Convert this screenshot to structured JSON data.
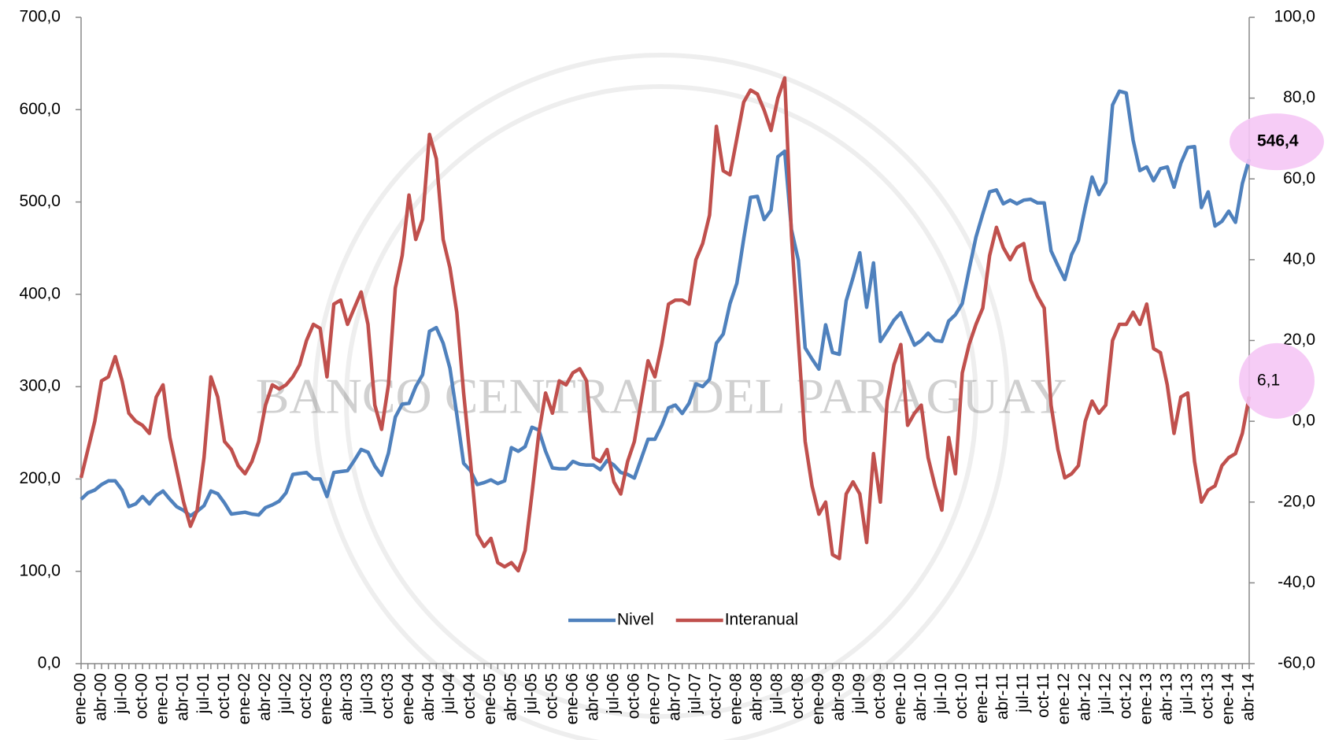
{
  "chart_data": {
    "type": "line",
    "watermark": "BANCO CENTRAL DEL PARAGUAY",
    "categories": [
      "ene-00",
      null,
      null,
      "abr-00",
      null,
      null,
      "jul-00",
      null,
      null,
      "oct-00",
      null,
      null,
      "ene-01",
      null,
      null,
      "abr-01",
      null,
      null,
      "jul-01",
      null,
      null,
      "oct-01",
      null,
      null,
      "ene-02",
      null,
      null,
      "abr-02",
      null,
      null,
      "jul-02",
      null,
      null,
      "oct-02",
      null,
      null,
      "ene-03",
      null,
      null,
      "abr-03",
      null,
      null,
      "jul-03",
      null,
      null,
      "oct-03",
      null,
      null,
      "ene-04",
      null,
      null,
      "abr-04",
      null,
      null,
      "jul-04",
      null,
      null,
      "oct-04",
      null,
      null,
      "ene-05",
      null,
      null,
      "abr-05",
      null,
      null,
      "jul-05",
      null,
      null,
      "oct-05",
      null,
      null,
      "ene-06",
      null,
      null,
      "abr-06",
      null,
      null,
      "jul-06",
      null,
      null,
      "oct-06",
      null,
      null,
      "ene-07",
      null,
      null,
      "abr-07",
      null,
      null,
      "jul-07",
      null,
      null,
      "oct-07",
      null,
      null,
      "ene-08",
      null,
      null,
      "abr-08",
      null,
      null,
      "jul-08",
      null,
      null,
      "oct-08",
      null,
      null,
      "ene-09",
      null,
      null,
      "abr-09",
      null,
      null,
      "jul-09",
      null,
      null,
      "oct-09",
      null,
      null,
      "ene-10",
      null,
      null,
      "abr-10",
      null,
      null,
      "jul-10",
      null,
      null,
      "oct-10",
      null,
      null,
      "ene-11",
      null,
      null,
      "abr-11",
      null,
      null,
      "jul-11",
      null,
      null,
      "oct-11",
      null,
      null,
      "ene-12",
      null,
      null,
      "abr-12",
      null,
      null,
      "jul-12",
      null,
      null,
      "oct-12",
      null,
      null,
      "ene-13",
      null,
      null,
      "abr-13",
      null,
      null,
      "jul-13",
      null,
      null,
      "oct-13",
      null,
      null,
      "ene-14",
      null,
      null,
      "abr-14"
    ],
    "series": [
      {
        "name": "Nivel",
        "color": "#4f81bd",
        "axis": "y",
        "values": [
          178,
          185,
          188,
          194,
          198,
          198,
          188,
          170,
          173,
          181,
          173,
          182,
          187,
          178,
          170,
          166,
          160,
          165,
          171,
          187,
          184,
          174,
          162,
          163,
          164,
          162,
          161,
          169,
          172,
          176,
          185,
          205,
          206,
          207,
          200,
          200,
          181,
          207,
          208,
          209,
          220,
          232,
          229,
          214,
          204,
          228,
          267,
          281,
          282,
          300,
          313,
          360,
          364,
          347,
          320,
          270,
          217,
          209,
          194,
          196,
          199,
          195,
          198,
          234,
          230,
          235,
          256,
          253,
          230,
          212,
          211,
          211,
          219,
          216,
          215,
          215,
          210,
          220,
          215,
          207,
          205,
          201,
          222,
          243,
          243,
          258,
          277,
          280,
          271,
          282,
          303,
          300,
          308,
          347,
          357,
          390,
          412,
          460,
          505,
          506,
          481,
          491,
          549,
          555,
          470,
          437,
          342,
          330,
          319,
          367,
          337,
          335,
          393,
          418,
          445,
          386,
          434,
          349,
          360,
          372,
          380,
          362,
          345,
          350,
          358,
          350,
          349,
          371,
          378,
          390,
          427,
          462,
          487,
          511,
          513,
          498,
          502,
          498,
          502,
          503,
          499,
          499,
          447,
          431,
          416,
          443,
          458,
          494,
          527,
          508,
          521,
          605,
          620,
          618,
          567,
          534,
          538,
          523,
          536,
          538,
          516,
          542,
          559,
          560,
          494,
          511,
          474,
          479,
          490,
          478,
          520,
          546.4
        ],
        "value_labels": [
          null,
          null,
          null,
          null,
          null,
          null,
          null,
          null,
          null,
          null,
          null,
          null,
          null,
          null,
          null,
          null,
          null,
          null,
          null,
          null,
          null,
          null,
          null,
          null,
          null,
          null,
          null,
          null,
          null,
          null,
          null,
          null,
          null,
          null,
          null,
          null,
          null,
          null,
          null,
          null,
          null,
          null,
          null,
          null,
          null,
          null,
          null,
          null,
          null,
          null,
          null,
          null,
          null,
          null,
          null,
          null,
          null,
          null,
          null,
          null,
          null,
          null,
          null,
          null,
          null,
          null,
          null,
          null,
          null,
          null,
          null,
          null,
          null,
          null,
          null,
          null,
          null,
          null,
          null,
          null,
          null,
          null,
          null,
          null,
          null,
          null,
          null,
          null,
          null,
          null,
          null,
          null,
          null,
          null,
          null,
          null,
          null,
          null,
          null,
          null,
          null,
          null,
          null,
          null,
          null,
          null,
          null,
          null,
          null,
          null,
          null,
          null,
          null,
          null,
          null,
          null,
          null,
          null,
          null,
          null,
          null,
          null,
          null,
          null,
          null,
          null,
          null,
          null,
          null,
          null,
          null,
          null,
          null,
          null,
          null,
          null,
          null,
          null,
          null,
          null,
          null,
          null,
          null,
          null,
          null,
          null,
          null,
          null,
          null,
          null,
          null,
          null,
          null,
          null,
          null,
          null,
          null,
          null,
          null,
          null,
          null,
          null,
          null,
          null,
          null,
          null,
          null,
          null,
          null,
          null,
          null,
          "546,4"
        ]
      },
      {
        "name": "Interanual",
        "color": "#c0504d",
        "axis": "y2",
        "values": [
          -14,
          -7,
          0,
          10,
          11,
          16,
          10,
          2,
          0,
          -1,
          -3,
          6,
          9,
          -4,
          -12,
          -20,
          -26,
          -22,
          -9,
          11,
          6,
          -5,
          -7,
          -11,
          -13,
          -10,
          -5,
          4,
          9,
          8,
          9,
          11,
          14,
          20,
          24,
          23,
          11,
          29,
          30,
          24,
          28,
          32,
          24,
          4,
          -2,
          9,
          33,
          41,
          56,
          45,
          50,
          71,
          65,
          45,
          38,
          27,
          7,
          -10,
          -28,
          -31,
          -29,
          -35,
          -36,
          -35,
          -37,
          -32,
          -18,
          -3,
          7,
          2,
          10,
          9,
          12,
          13,
          10,
          -9,
          -10,
          -7,
          -15,
          -18,
          -10,
          -5,
          5,
          15,
          11,
          19,
          29,
          30,
          30,
          29,
          40,
          44,
          51,
          73,
          62,
          61,
          70,
          79,
          82,
          81,
          77,
          72,
          80,
          85,
          46,
          20,
          -5,
          -16,
          -23,
          -20,
          -33,
          -34,
          -18,
          -15,
          -18,
          -30,
          -8,
          -20,
          5,
          14,
          19,
          -1,
          2,
          4,
          -9,
          -16,
          -22,
          -4,
          -13,
          12,
          19,
          24,
          28,
          41,
          48,
          43,
          40,
          43,
          44,
          35,
          31,
          28,
          4,
          -7,
          -14,
          -13,
          -11,
          0,
          5,
          2,
          4,
          20,
          24,
          24,
          27,
          24,
          29,
          18,
          17,
          9,
          -3,
          6,
          7,
          -10,
          -20,
          -17,
          -16,
          -11,
          -9,
          -8,
          -3,
          6.1
        ],
        "value_labels": [
          null,
          null,
          null,
          null,
          null,
          null,
          null,
          null,
          null,
          null,
          null,
          null,
          null,
          null,
          null,
          null,
          null,
          null,
          null,
          null,
          null,
          null,
          null,
          null,
          null,
          null,
          null,
          null,
          null,
          null,
          null,
          null,
          null,
          null,
          null,
          null,
          null,
          null,
          null,
          null,
          null,
          null,
          null,
          null,
          null,
          null,
          null,
          null,
          null,
          null,
          null,
          null,
          null,
          null,
          null,
          null,
          null,
          null,
          null,
          null,
          null,
          null,
          null,
          null,
          null,
          null,
          null,
          null,
          null,
          null,
          null,
          null,
          null,
          null,
          null,
          null,
          null,
          null,
          null,
          null,
          null,
          null,
          null,
          null,
          null,
          null,
          null,
          null,
          null,
          null,
          null,
          null,
          null,
          null,
          null,
          null,
          null,
          null,
          null,
          null,
          null,
          null,
          null,
          null,
          null,
          null,
          null,
          null,
          null,
          null,
          null,
          null,
          null,
          null,
          null,
          null,
          null,
          null,
          null,
          null,
          null,
          null,
          null,
          null,
          null,
          null,
          null,
          null,
          null,
          null,
          null,
          null,
          null,
          null,
          null,
          null,
          null,
          null,
          null,
          null,
          null,
          null,
          null,
          null,
          null,
          null,
          null,
          null,
          null,
          null,
          null,
          null,
          null,
          null,
          null,
          null,
          null,
          null,
          null,
          null,
          null,
          null,
          null,
          null,
          null,
          null,
          null,
          null,
          null,
          null,
          null,
          "6,1"
        ]
      }
    ],
    "ylim": [
      0,
      700
    ],
    "yticks": [
      {
        "value": 0,
        "label": "0,0"
      },
      {
        "value": 100,
        "label": "100,0"
      },
      {
        "value": 200,
        "label": "200,0"
      },
      {
        "value": 300,
        "label": "300,0"
      },
      {
        "value": 400,
        "label": "400,0"
      },
      {
        "value": 500,
        "label": "500,0"
      },
      {
        "value": 600,
        "label": "600,0"
      },
      {
        "value": 700,
        "label": "700,0"
      }
    ],
    "y2lim": [
      -60,
      100
    ],
    "y2ticks": [
      {
        "value": -60,
        "label": "-60,0"
      },
      {
        "value": -40,
        "label": "-40,0"
      },
      {
        "value": -20,
        "label": "-20,0"
      },
      {
        "value": 0,
        "label": "0,0"
      },
      {
        "value": 20,
        "label": "20,0"
      },
      {
        "value": 40,
        "label": "40,0"
      },
      {
        "value": 60,
        "label": "60,0"
      },
      {
        "value": 80,
        "label": "80,0"
      },
      {
        "value": 100,
        "label": "100,0"
      }
    ],
    "grid": false,
    "legend": "bottom"
  }
}
